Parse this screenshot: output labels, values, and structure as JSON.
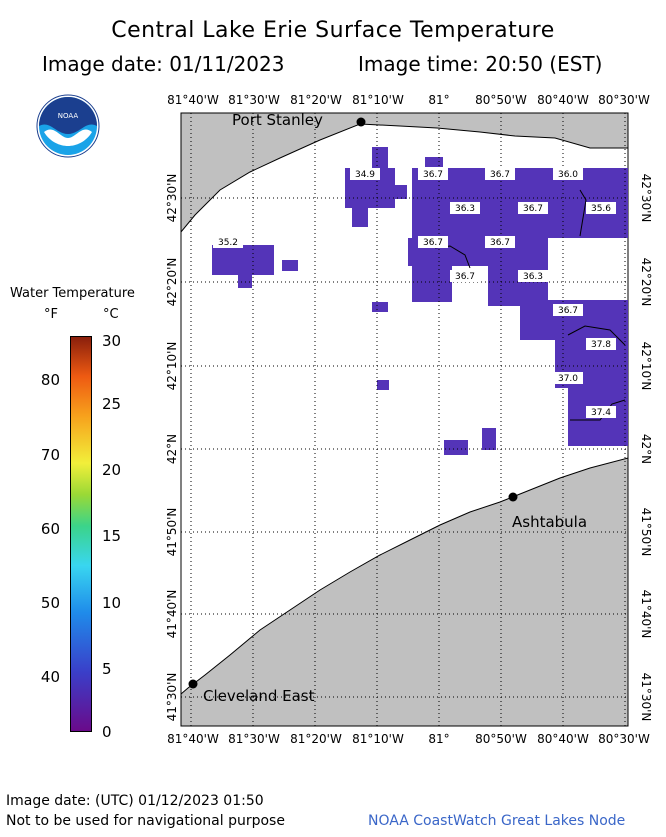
{
  "header": {
    "title": "Central Lake Erie Surface Temperature",
    "image_date": "Image date: 01/11/2023",
    "image_time": "Image time: 20:50 (EST)"
  },
  "logo": {
    "text": "NOAA",
    "icon": "noaa-logo"
  },
  "colorbar": {
    "title": "Water Temperature",
    "unit_f": "°F",
    "unit_c": "°C",
    "f_ticks": [
      "80",
      "70",
      "60",
      "50",
      "40"
    ],
    "c_ticks": [
      "30",
      "25",
      "20",
      "15",
      "10",
      "5",
      "0"
    ]
  },
  "map": {
    "lon_labels": [
      "81°40'W",
      "81°30'W",
      "81°20'W",
      "81°10'W",
      "81°",
      "80°50'W",
      "80°40'W",
      "80°30'W"
    ],
    "lat_labels": [
      "42°30'N",
      "42°20'N",
      "42°10'N",
      "42°N",
      "41°50'N",
      "41°40'N",
      "41°30'N"
    ],
    "cities": [
      {
        "name": "Port Stanley"
      },
      {
        "name": "Ashtabula"
      },
      {
        "name": "Cleveland East"
      }
    ],
    "temp_labels": [
      "34.9",
      "36.7",
      "36.7",
      "36.0",
      "36.3",
      "36.7",
      "35.6",
      "35.2",
      "36.7",
      "36.7",
      "36.7",
      "36.3",
      "36.7",
      "37.8",
      "37.0",
      "37.4"
    ],
    "colors": {
      "land": "#c0c0c0",
      "water": "#ffffff",
      "sst": "#5434b8"
    }
  },
  "footer": {
    "utc_date": "Image date: (UTC) 01/12/2023  01:50",
    "disclaimer": "Not to be used for navigational purpose",
    "credit": "NOAA CoastWatch Great Lakes Node"
  }
}
